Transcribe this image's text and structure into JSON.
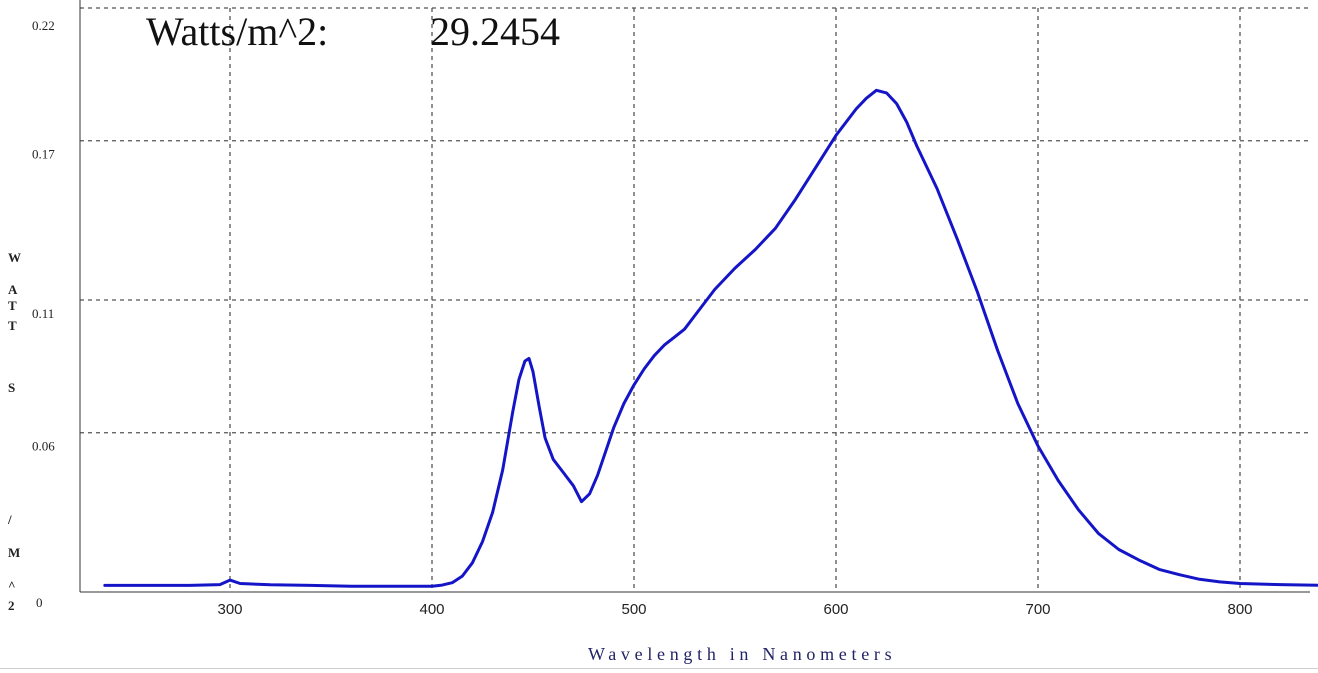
{
  "readout": {
    "label": "Watts/m^2:",
    "value": "29.2454"
  },
  "chart_data": {
    "type": "line",
    "title": "",
    "xlabel": "Wavelength in Nanometers",
    "ylabel": "WATTS/M^2",
    "ylabel_letters": [
      "W",
      "A",
      "T",
      "T",
      "S",
      "/",
      "M",
      "^",
      "2"
    ],
    "xlim": [
      238,
      845
    ],
    "ylim": [
      0,
      0.22
    ],
    "x_ticks": [
      300,
      400,
      500,
      600,
      700,
      800
    ],
    "y_ticks": [
      0,
      0.06,
      0.11,
      0.17,
      0.22
    ],
    "y_tick_labels": [
      "0",
      "0.06",
      "0.11",
      "0.17",
      "0.22"
    ],
    "grid": true,
    "line_color": "#1515c8",
    "grid_color": "#555555",
    "series": [
      {
        "x": [
          238,
          260,
          280,
          295,
          300,
          305,
          320,
          340,
          360,
          380,
          400,
          405,
          410,
          415,
          420,
          425,
          430,
          435,
          440,
          443,
          446,
          448,
          450,
          453,
          456,
          460,
          465,
          470,
          474,
          478,
          482,
          486,
          490,
          495,
          500,
          505,
          510,
          515,
          520,
          525,
          530,
          540,
          550,
          560,
          570,
          580,
          590,
          600,
          605,
          610,
          615,
          620,
          625,
          630,
          635,
          640,
          650,
          660,
          670,
          680,
          690,
          700,
          710,
          720,
          730,
          740,
          750,
          760,
          770,
          780,
          790,
          800,
          820,
          845
        ],
        "y": [
          0.0025,
          0.0025,
          0.0025,
          0.0028,
          0.0045,
          0.0032,
          0.0027,
          0.0025,
          0.0022,
          0.0022,
          0.0022,
          0.0026,
          0.0035,
          0.006,
          0.011,
          0.019,
          0.03,
          0.046,
          0.068,
          0.08,
          0.087,
          0.088,
          0.083,
          0.07,
          0.058,
          0.05,
          0.045,
          0.04,
          0.034,
          0.037,
          0.044,
          0.053,
          0.062,
          0.071,
          0.078,
          0.084,
          0.089,
          0.093,
          0.096,
          0.099,
          0.104,
          0.114,
          0.122,
          0.129,
          0.137,
          0.148,
          0.16,
          0.172,
          0.177,
          0.182,
          0.186,
          0.189,
          0.188,
          0.184,
          0.177,
          0.168,
          0.152,
          0.133,
          0.113,
          0.091,
          0.071,
          0.055,
          0.042,
          0.031,
          0.022,
          0.016,
          0.012,
          0.0085,
          0.0065,
          0.0048,
          0.0038,
          0.0032,
          0.0028,
          0.0025
        ]
      }
    ]
  }
}
